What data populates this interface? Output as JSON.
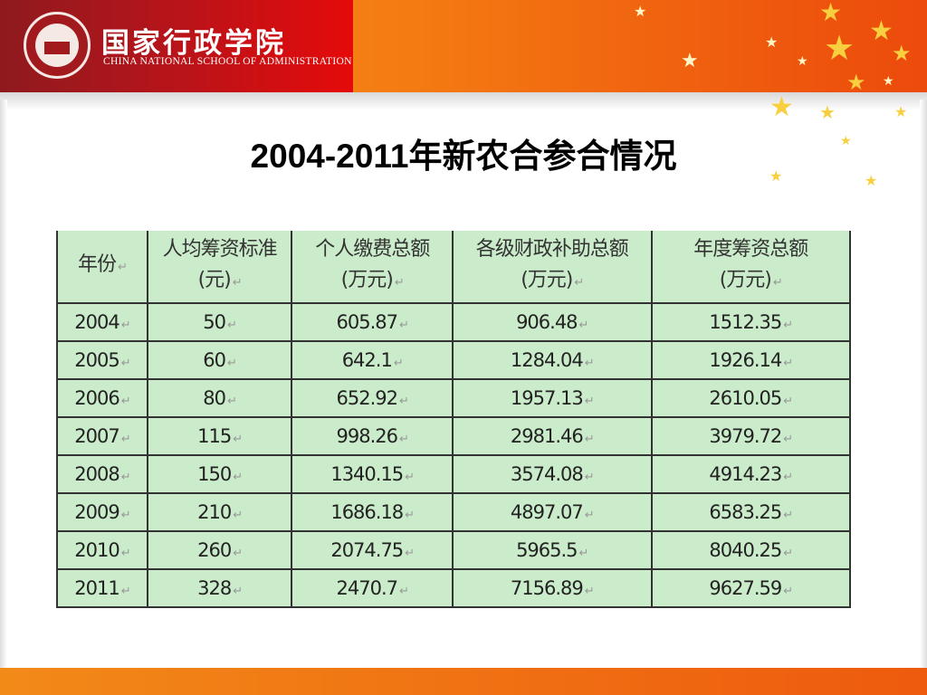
{
  "header": {
    "org_name_cn": "国家行政学院",
    "org_name_en": "CHINA NATIONAL SCHOOL OF ADMINISTRATION"
  },
  "colors": {
    "brand_red": "#b8141a",
    "accent_orange": "#f47a12",
    "table_bg": "#cbeccb"
  },
  "title": "2004-2011年新农合参合情况",
  "table": {
    "columns": [
      {
        "line1": "年份",
        "line2": ""
      },
      {
        "line1": "人均筹资标准",
        "line2": "(元)"
      },
      {
        "line1": "个人缴费总额",
        "line2": "(万元)"
      },
      {
        "line1": "各级财政补助总额",
        "line2": "(万元)"
      },
      {
        "line1": "年度筹资总额",
        "line2": "(万元)"
      }
    ],
    "rows": [
      [
        "2004",
        "50",
        "605.87",
        "906.48",
        "1512.35"
      ],
      [
        "2005",
        "60",
        "642.1",
        "1284.04",
        "1926.14"
      ],
      [
        "2006",
        "80",
        "652.92",
        "1957.13",
        "2610.05"
      ],
      [
        "2007",
        "115",
        "998.26",
        "2981.46",
        "3979.72"
      ],
      [
        "2008",
        "150",
        "1340.15",
        "3574.08",
        "4914.23"
      ],
      [
        "2009",
        "210",
        "1686.18",
        "4897.07",
        "6583.25"
      ],
      [
        "2010",
        "260",
        "2074.75",
        "5965.5",
        "8040.25"
      ],
      [
        "2011",
        "328",
        "2470.7",
        "7156.89",
        "9627.59"
      ]
    ]
  }
}
